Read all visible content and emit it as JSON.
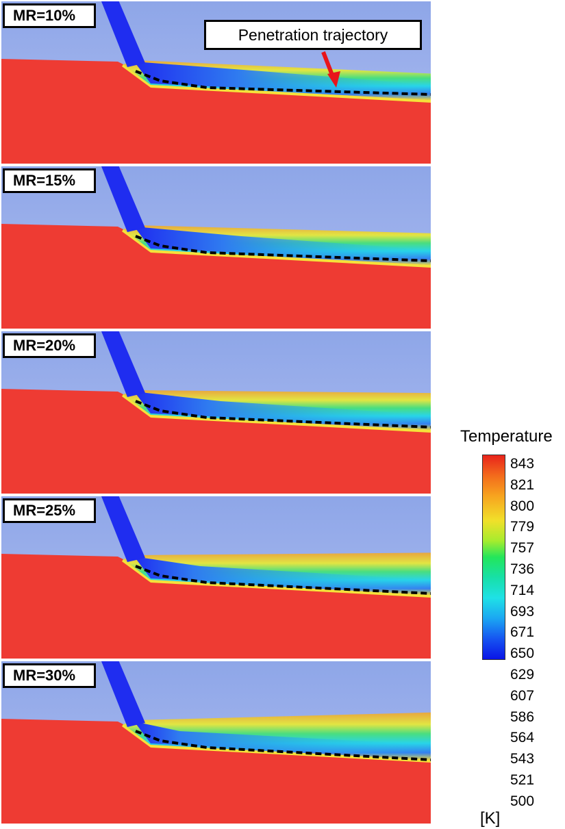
{
  "panels": [
    {
      "label": "MR=10%"
    },
    {
      "label": "MR=15%"
    },
    {
      "label": "MR=20%"
    },
    {
      "label": "MR=25%"
    },
    {
      "label": "MR=30%"
    }
  ],
  "annotation": {
    "text": "Penetration trajectory",
    "arrow_color": "#e8141b"
  },
  "colorbar": {
    "title": "Temperature",
    "unit": "[K]",
    "ticks": [
      "843",
      "821",
      "800",
      "779",
      "757",
      "736",
      "714",
      "693",
      "671",
      "650",
      "629",
      "607",
      "586",
      "564",
      "543",
      "521",
      "500"
    ],
    "min": 500,
    "max": 843
  },
  "colors": {
    "hot_wall": "#ee3b33",
    "freestream": "#9fb4ea",
    "coolant": "#1f2df0",
    "trajectory": "#000000"
  }
}
